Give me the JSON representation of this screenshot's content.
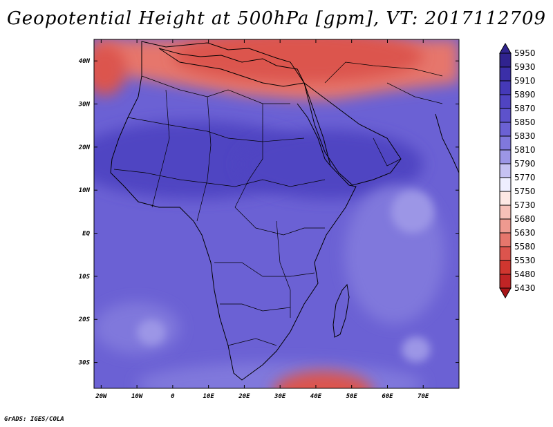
{
  "title": "Geopotential Height at 500hPa [gpm], VT: 2017112709",
  "footer": "GrADS: IGES/COLA",
  "chart_data": {
    "type": "heatmap",
    "variable": "Geopotential Height at 500hPa",
    "units": "gpm",
    "valid_time": "2017112709",
    "xlim": [
      -22,
      80
    ],
    "ylim": [
      -36,
      45
    ],
    "x_ticks": [
      {
        "value": -20,
        "label": "20W"
      },
      {
        "value": -10,
        "label": "10W"
      },
      {
        "value": 0,
        "label": "0"
      },
      {
        "value": 10,
        "label": "10E"
      },
      {
        "value": 20,
        "label": "20E"
      },
      {
        "value": 30,
        "label": "30E"
      },
      {
        "value": 40,
        "label": "40E"
      },
      {
        "value": 50,
        "label": "50E"
      },
      {
        "value": 60,
        "label": "60E"
      },
      {
        "value": 70,
        "label": "70E"
      }
    ],
    "y_ticks": [
      {
        "value": 40,
        "label": "40N"
      },
      {
        "value": 30,
        "label": "30N"
      },
      {
        "value": 20,
        "label": "20N"
      },
      {
        "value": 10,
        "label": "10N"
      },
      {
        "value": 0,
        "label": "EQ"
      },
      {
        "value": -10,
        "label": "10S"
      },
      {
        "value": -20,
        "label": "20S"
      },
      {
        "value": -30,
        "label": "30S"
      }
    ],
    "colorbar": {
      "levels": [
        5950,
        5930,
        5910,
        5890,
        5870,
        5850,
        5830,
        5810,
        5790,
        5770,
        5750,
        5730,
        5680,
        5630,
        5580,
        5530,
        5480,
        5430
      ],
      "colors": [
        "#30238f",
        "#3b2fa8",
        "#4539b8",
        "#5044c2",
        "#5d52cc",
        "#6b61d4",
        "#8078dc",
        "#9c96e6",
        "#c6c2f2",
        "#eeeeff",
        "#fde8e4",
        "#f6c0b8",
        "#ee9a90",
        "#e6766c",
        "#dc544d",
        "#d0362f",
        "#c02425",
        "#a81518"
      ]
    },
    "field_regions": [
      {
        "description": "background",
        "level": 5850
      },
      {
        "description": "Sahara / Sahel ridge",
        "level": 5890
      },
      {
        "description": "Arabia / Horn ridge",
        "level": 5890
      },
      {
        "description": "Indian Ocean weaker heights",
        "level": 5830
      },
      {
        "description": "southern subtropics weak spots",
        "level": 5810
      },
      {
        "description": "Mediterranean trough",
        "level": 5630
      },
      {
        "description": "Eastern Mediterranean / Turkey low",
        "level": 5580
      },
      {
        "description": "southern trough near 40E",
        "level": 5580
      }
    ]
  }
}
